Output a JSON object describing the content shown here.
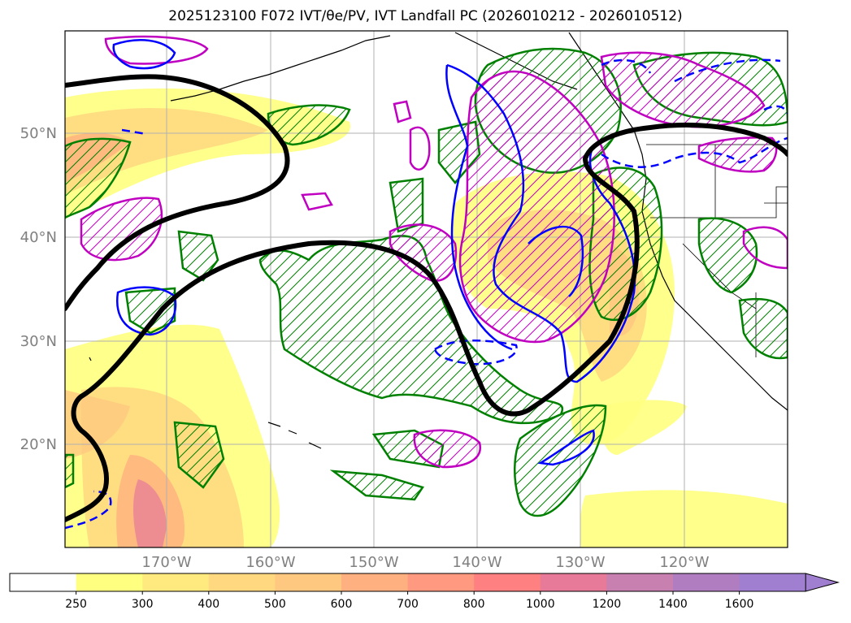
{
  "title": "2025123100 F072 IVT/θe/PV, IVT Landfall PC (2026010212 - 2026010512)",
  "map": {
    "lat_labels": [
      "50°N",
      "40°N",
      "30°N",
      "20°N"
    ],
    "lon_labels": [
      "170°W",
      "160°W",
      "150°W",
      "140°W",
      "130°W",
      "120°W"
    ],
    "fill_variable": "IVT",
    "contour_colors": {
      "theta_e_positive": "#008000",
      "pv_positive": "#c000c0",
      "negative_anomaly": "#0000ff",
      "principal_component": "#000000"
    }
  },
  "colorbar": {
    "ticks": [
      "250",
      "300",
      "400",
      "500",
      "600",
      "700",
      "800",
      "1000",
      "1200",
      "1400",
      "1600"
    ],
    "colors": [
      "#ffffff",
      "#ffff80",
      "#ffea80",
      "#ffd880",
      "#ffc880",
      "#ffb080",
      "#ff9a80",
      "#ff8080",
      "#e77a99",
      "#c880b0",
      "#b07ec0",
      "#a07ed0"
    ],
    "extend": "max"
  }
}
